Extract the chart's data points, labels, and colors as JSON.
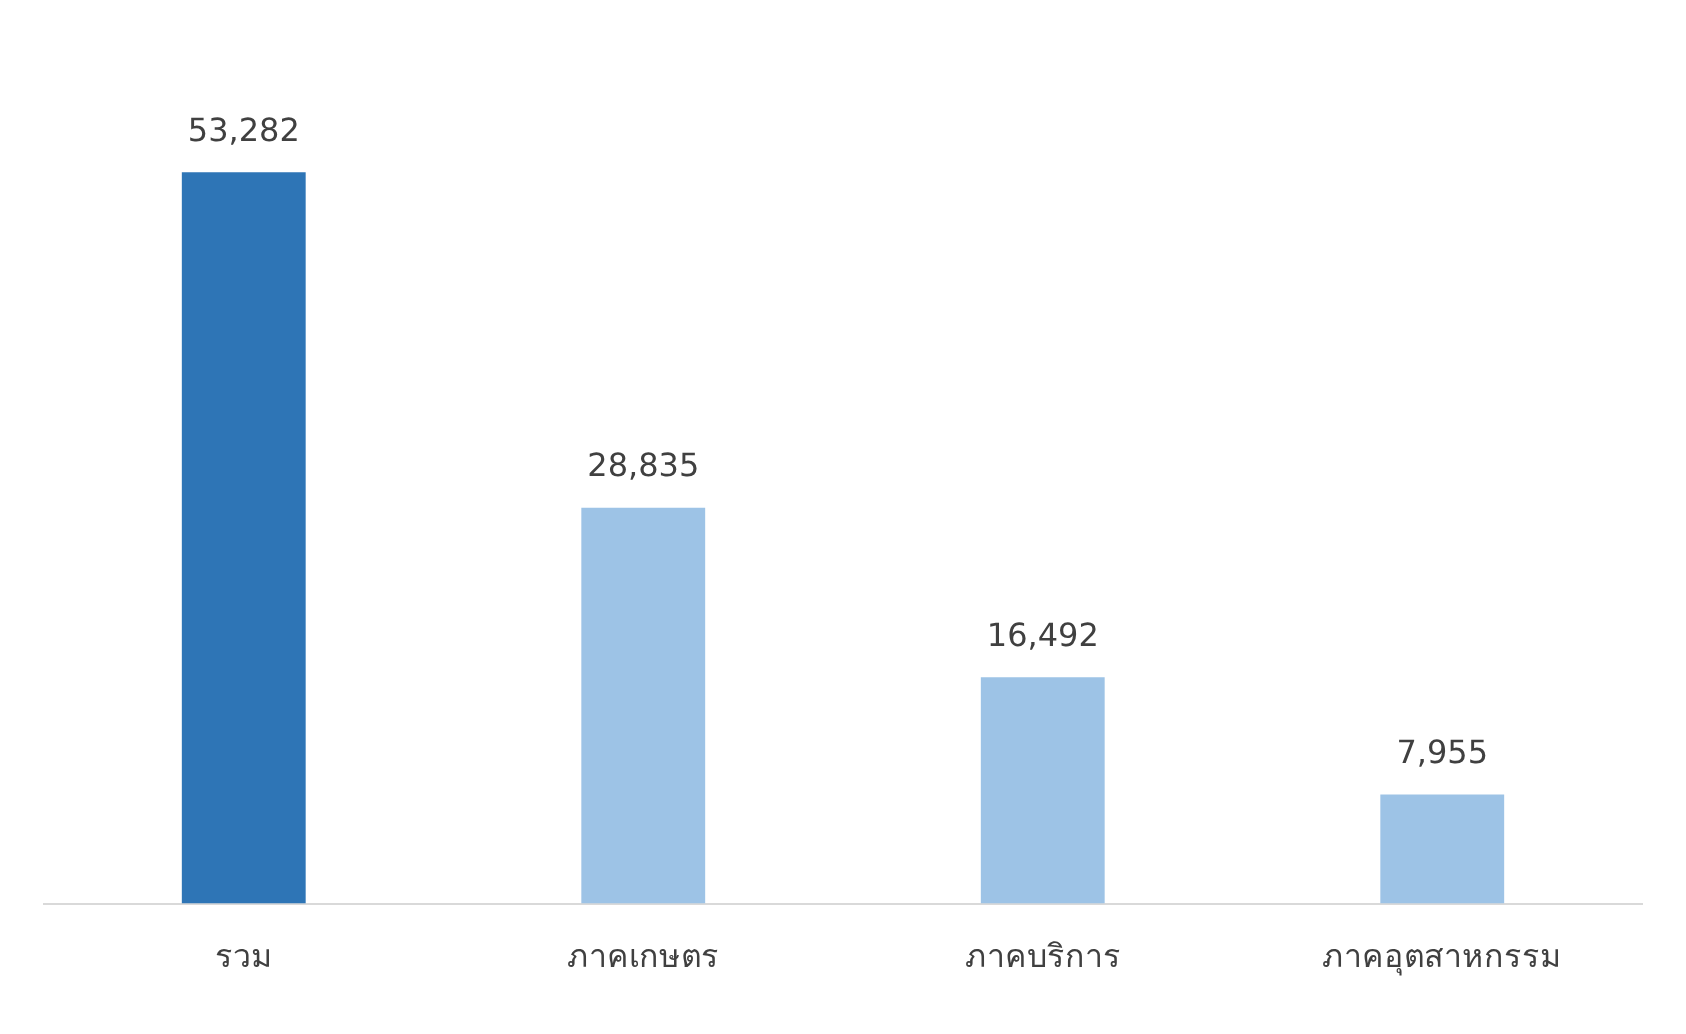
{
  "chart_data": {
    "type": "bar",
    "categories": [
      "รวม",
      "ภาคเกษตร",
      "ภาคบริการ",
      "ภาคอุตสาหกรรม"
    ],
    "values": [
      53282,
      28835,
      16492,
      7955
    ],
    "colors": [
      "#2e75b6",
      "#9dc3e6",
      "#9dc3e6",
      "#9dc3e6"
    ],
    "value_labels": [
      "53,282",
      "28,835",
      "16,492",
      "7,955"
    ],
    "grid": false,
    "legend": false
  }
}
